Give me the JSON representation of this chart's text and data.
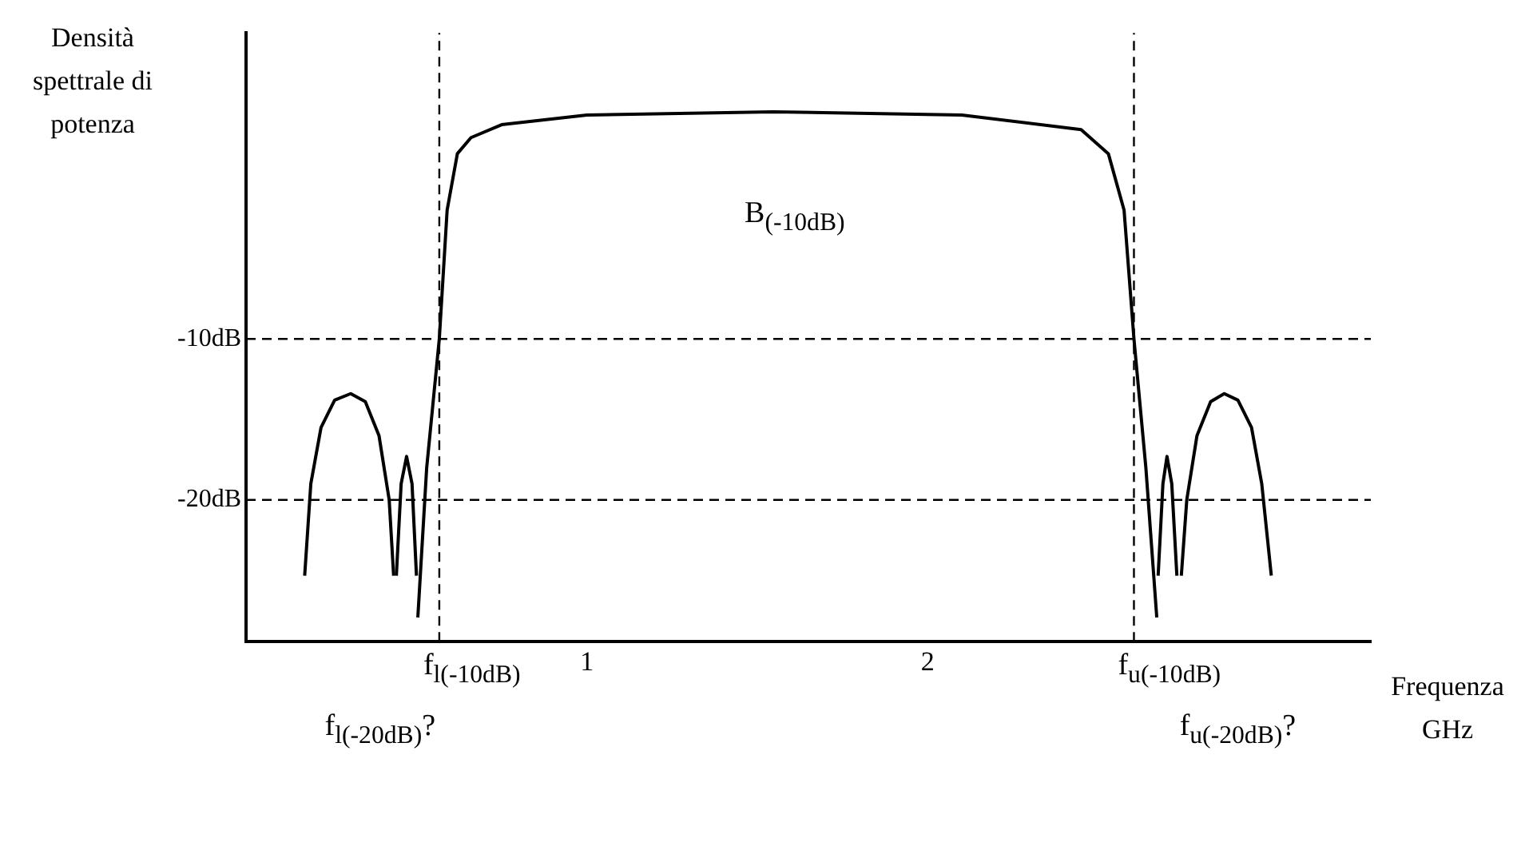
{
  "chart_data": {
    "type": "line",
    "xlabel": "Frequenza GHz",
    "ylabel": "Densità spettrale di potenza",
    "xlim": [
      0,
      3.3
    ],
    "ylim": [
      -28.8,
      9
    ],
    "xticks": [
      1,
      2
    ],
    "yticks": [
      {
        "value": -10,
        "label": "-10dB"
      },
      {
        "value": -20,
        "label": "-20dB"
      }
    ],
    "grid": false,
    "legend": false,
    "marker": "none",
    "series": [
      {
        "color": "#000000",
        "x": [
          0.172,
          0.19,
          0.22,
          0.26,
          0.307,
          0.35,
          0.39,
          0.42,
          0.433
        ],
        "values": [
          -24.7,
          -19,
          -15.5,
          -13.8,
          -13.4,
          -13.9,
          -16,
          -20,
          -24.7
        ]
      },
      {
        "color": "#000000",
        "x": [
          0.441,
          0.455,
          0.471,
          0.487,
          0.5
        ],
        "values": [
          -24.7,
          -19,
          -17.3,
          -19,
          -24.7
        ]
      },
      {
        "color": "#000000",
        "x": [
          0.504,
          0.53,
          0.567,
          0.59,
          0.62,
          0.66,
          0.75,
          1.0,
          1.546,
          2.1,
          2.45,
          2.53,
          2.576,
          2.605,
          2.64,
          2.672
        ],
        "values": [
          -27.3,
          -18,
          -10,
          -2,
          1.5,
          2.5,
          3.3,
          3.9,
          4.1,
          3.9,
          3.0,
          1.5,
          -2,
          -10,
          -18,
          -27.3
        ]
      },
      {
        "color": "#000000",
        "x": [
          2.676,
          2.69,
          2.702,
          2.716,
          2.731
        ],
        "values": [
          -24.7,
          -19,
          -17.3,
          -19,
          -24.7
        ]
      },
      {
        "color": "#000000",
        "x": [
          2.744,
          2.76,
          2.79,
          2.83,
          2.87,
          2.91,
          2.95,
          2.98,
          3.008
        ],
        "values": [
          -24.7,
          -20,
          -16,
          -13.9,
          -13.4,
          -13.8,
          -15.5,
          -19,
          -24.7
        ]
      }
    ],
    "ref_lines": [
      {
        "axis": "y",
        "value": -10,
        "line_style": "dashed",
        "color": "#000000"
      },
      {
        "axis": "y",
        "value": -20,
        "line_style": "dashed",
        "color": "#000000"
      },
      {
        "axis": "x",
        "value": 0.567,
        "line_style": "dashed",
        "color": "#000000"
      },
      {
        "axis": "x",
        "value": 2.605,
        "line_style": "dashed",
        "color": "#000000"
      }
    ],
    "annotations": [
      "B$_{(-10dB)}$",
      {
        "text": "f$_{l(-10dB)}$",
        "x": 0.567,
        "y": -28.8
      },
      {
        "text": "f$_{u(-10dB)}$",
        "x": 2.605,
        "y": -28.8
      },
      "f$_{l(-20dB)}$?",
      "f$_{u(-20dB)}$?"
    ]
  }
}
